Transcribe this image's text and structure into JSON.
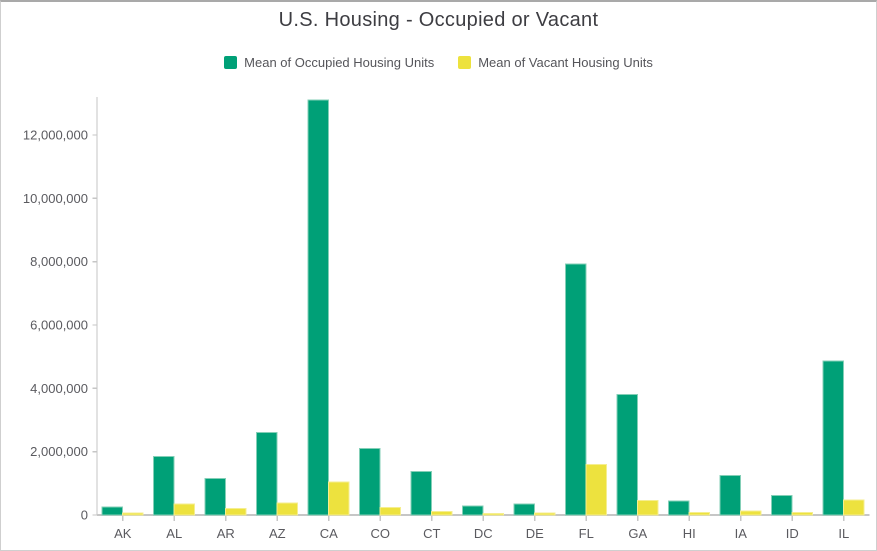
{
  "title": "U.S. Housing - Occupied or Vacant",
  "colors": {
    "occupied": "#00A077",
    "occupied_border": "#84CFB7",
    "vacant": "#EDE23E",
    "vacant_border": "#F5EE90",
    "axis_line": "#c6c6c6",
    "axis_text": "#5a5a5f",
    "title_text": "#3d3d42"
  },
  "chart_data": {
    "type": "bar",
    "title": "U.S. Housing - Occupied or Vacant",
    "xlabel": "",
    "ylabel": "",
    "grid": false,
    "legend_position": "top",
    "categories": [
      "AK",
      "AL",
      "AR",
      "AZ",
      "CA",
      "CO",
      "CT",
      "DC",
      "DE",
      "FL",
      "GA",
      "HI",
      "IA",
      "ID",
      "IL"
    ],
    "series": [
      {
        "name": "Mean of Occupied Housing Units",
        "color": "#00A077",
        "border": "#84CFB7",
        "values": [
          250000,
          1850000,
          1150000,
          2600000,
          13100000,
          2100000,
          1370000,
          280000,
          350000,
          7930000,
          3800000,
          440000,
          1250000,
          610000,
          4860000
        ]
      },
      {
        "name": "Mean of Vacant Housing Units",
        "color": "#EDE23E",
        "border": "#F5EE90",
        "values": [
          60000,
          340000,
          200000,
          380000,
          1050000,
          240000,
          110000,
          40000,
          65000,
          1600000,
          460000,
          85000,
          120000,
          75000,
          480000
        ]
      }
    ],
    "y_axis": {
      "ticks": [
        0,
        2000000,
        4000000,
        6000000,
        8000000,
        10000000,
        12000000
      ],
      "tick_labels": [
        "0",
        "2,000,000",
        "4,000,000",
        "6,000,000",
        "8,000,000",
        "10,000,000",
        "12,000,000"
      ],
      "max": 13200000
    }
  }
}
